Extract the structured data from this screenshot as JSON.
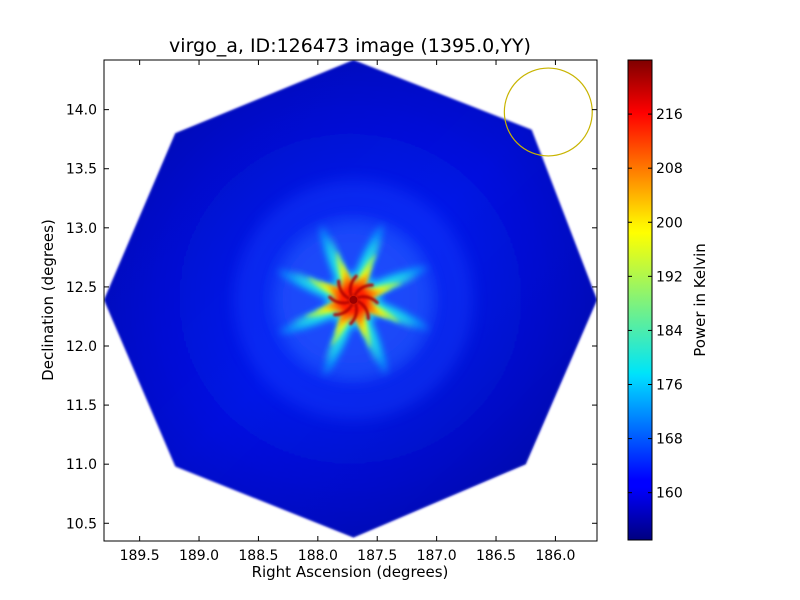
{
  "chart_data": {
    "type": "heatmap",
    "title": "virgo_a, ID:126473 image (1395.0,YY)",
    "xlabel": "Right Ascension (degrees)",
    "ylabel": "Declination (degrees)",
    "x_ticks": [
      {
        "value": 189.5,
        "label": "189.5"
      },
      {
        "value": 189.0,
        "label": "189.0"
      },
      {
        "value": 188.5,
        "label": "188.5"
      },
      {
        "value": 188.0,
        "label": "188.0"
      },
      {
        "value": 187.5,
        "label": "187.5"
      },
      {
        "value": 187.0,
        "label": "187.0"
      },
      {
        "value": 186.5,
        "label": "186.5"
      },
      {
        "value": 186.0,
        "label": "186.0"
      }
    ],
    "y_ticks": [
      {
        "value": 10.5,
        "label": "10.5"
      },
      {
        "value": 11.0,
        "label": "11.0"
      },
      {
        "value": 11.5,
        "label": "11.5"
      },
      {
        "value": 12.0,
        "label": "12.0"
      },
      {
        "value": 12.5,
        "label": "12.5"
      },
      {
        "value": 13.0,
        "label": "13.0"
      },
      {
        "value": 13.5,
        "label": "13.5"
      },
      {
        "value": 14.0,
        "label": "14.0"
      }
    ],
    "xlim": [
      189.8,
      185.65
    ],
    "ylim": [
      10.35,
      14.42
    ],
    "x_inverted": true,
    "grid": false,
    "image": {
      "center_ra": 187.7,
      "center_dec": 12.39,
      "octagon_vertices": [
        {
          "ra": 187.7,
          "dec": 14.42
        },
        {
          "ra": 186.2,
          "dec": 13.83
        },
        {
          "ra": 185.65,
          "dec": 12.39
        },
        {
          "ra": 186.25,
          "dec": 11.0
        },
        {
          "ra": 187.7,
          "dec": 10.38
        },
        {
          "ra": 189.2,
          "dec": 10.98
        },
        {
          "ra": 189.8,
          "dec": 12.39
        },
        {
          "ra": 189.2,
          "dec": 13.8
        }
      ],
      "peak_value": 222,
      "background_value": 158,
      "star_arms": 8
    },
    "beam_circle": {
      "center_ra": 186.06,
      "center_dec": 13.98,
      "radius_deg": 0.37,
      "color": "#c8b400"
    },
    "colorbar": {
      "label": "Power in Kelvin",
      "min": 153,
      "max": 224,
      "ticks": [
        {
          "value": 160,
          "label": "160"
        },
        {
          "value": 168,
          "label": "168"
        },
        {
          "value": 176,
          "label": "176"
        },
        {
          "value": 184,
          "label": "184"
        },
        {
          "value": 192,
          "label": "192"
        },
        {
          "value": 200,
          "label": "200"
        },
        {
          "value": 208,
          "label": "208"
        },
        {
          "value": 216,
          "label": "216"
        }
      ],
      "colormap": "jet"
    }
  }
}
